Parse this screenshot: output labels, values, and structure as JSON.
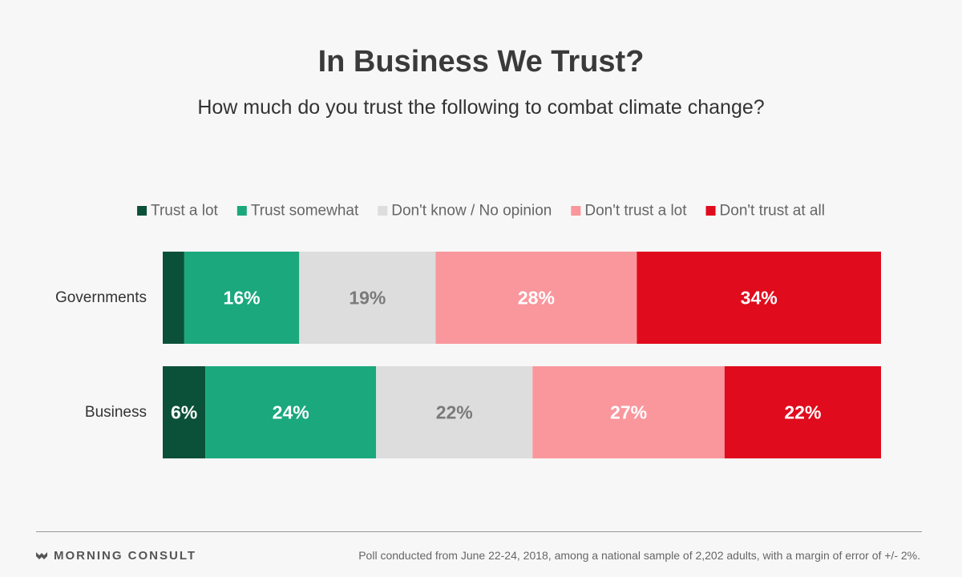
{
  "header": {
    "title": "In Business We Trust?",
    "subtitle": "How much do you trust the following to combat climate change?"
  },
  "footer": {
    "brand": "MORNING CONSULT",
    "brand_icon": "morning-consult-logo-icon",
    "note": "Poll conducted from June 22-24, 2018, among a national sample of 2,202 adults, with a margin of error of +/- 2%."
  },
  "chart_data": {
    "type": "bar",
    "orientation": "horizontal",
    "stacked": true,
    "normalized_percent": true,
    "legend_position": "top",
    "grid": false,
    "categories": [
      "Governments",
      "Business"
    ],
    "series": [
      {
        "name": "Trust a lot",
        "values": [
          3,
          6
        ],
        "color": "#0b5038",
        "label_color": "#ffffff",
        "labels": [
          "",
          "6%"
        ]
      },
      {
        "name": "Trust somewhat",
        "values": [
          16,
          24
        ],
        "color": "#1ba87d",
        "label_color": "#ffffff",
        "labels": [
          "16%",
          "24%"
        ]
      },
      {
        "name": "Don't know / No opinion",
        "values": [
          19,
          22
        ],
        "color": "#dddddd",
        "label_color": "#7a7a7a",
        "labels": [
          "19%",
          "22%"
        ]
      },
      {
        "name": "Don't trust a lot",
        "values": [
          28,
          27
        ],
        "color": "#f9979d",
        "label_color": "#ffffff",
        "labels": [
          "28%",
          "27%"
        ]
      },
      {
        "name": "Don't trust at all",
        "values": [
          34,
          22
        ],
        "color": "#e00b1c",
        "label_color": "#ffffff",
        "labels": [
          "34%",
          "22%"
        ]
      }
    ]
  }
}
